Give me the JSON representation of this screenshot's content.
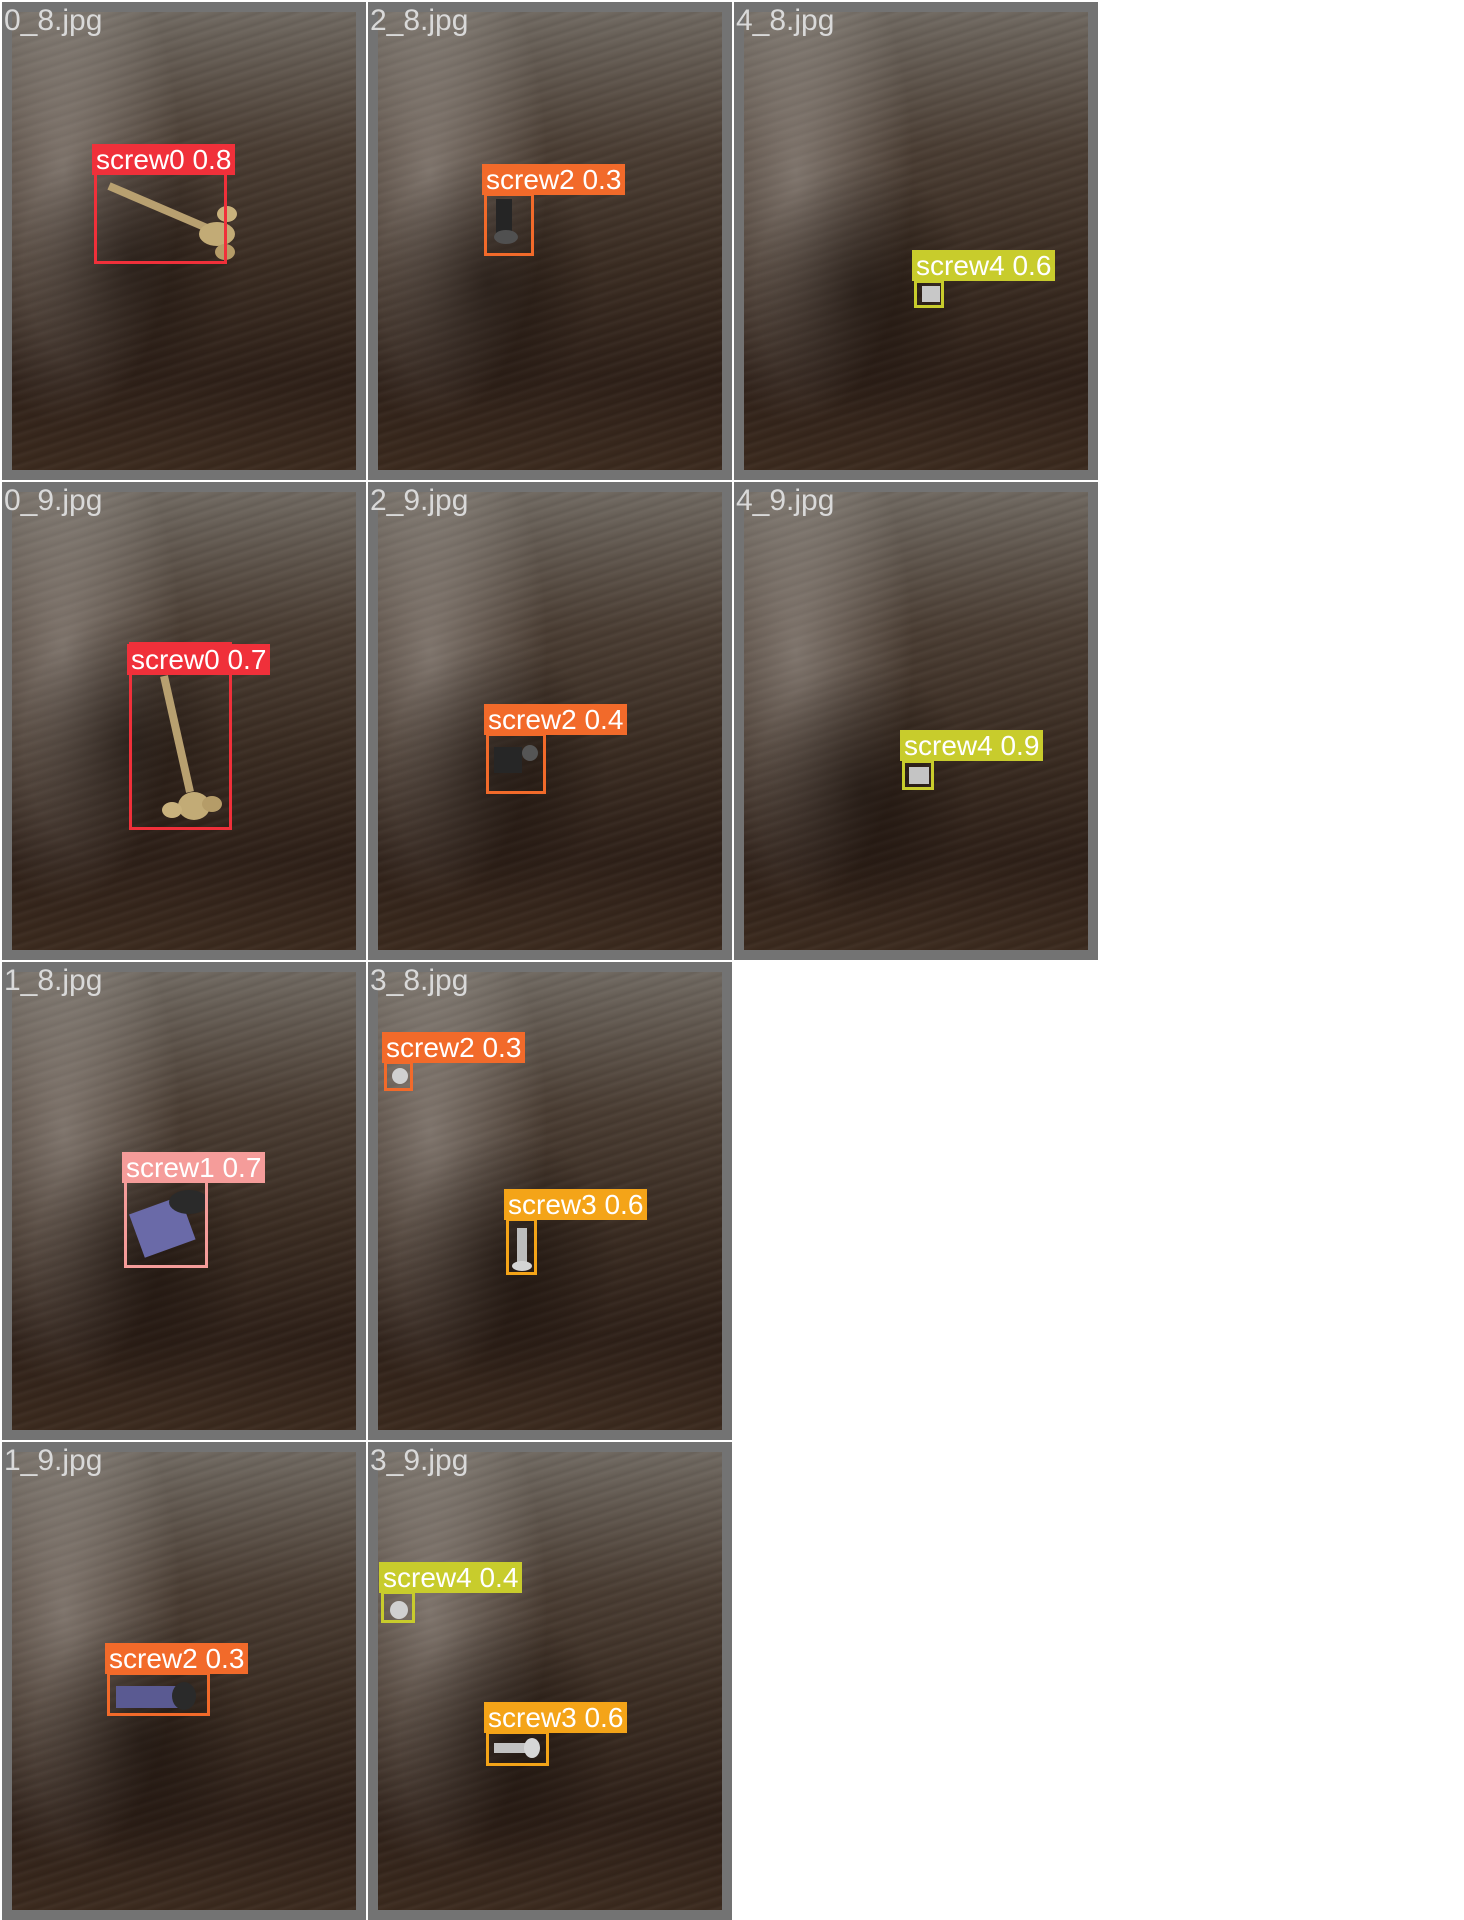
{
  "tiles": [
    {
      "filename": "0_8.jpg",
      "label": "screw0 0.8",
      "class": "screw0",
      "score": 0.8
    },
    {
      "filename": "2_8.jpg",
      "label": "screw2 0.3",
      "class": "screw2",
      "score": 0.3
    },
    {
      "filename": "4_8.jpg",
      "label": "screw4 0.6",
      "class": "screw4",
      "score": 0.6
    },
    {
      "filename": "0_9.jpg",
      "label": "screw0 0.7",
      "class": "screw0",
      "score": 0.7
    },
    {
      "filename": "2_9.jpg",
      "label": "screw2 0.4",
      "class": "screw2",
      "score": 0.4
    },
    {
      "filename": "4_9.jpg",
      "label": "screw4 0.9",
      "class": "screw4",
      "score": 0.9
    },
    {
      "filename": "1_8.jpg",
      "label": "screw1 0.7",
      "class": "screw1",
      "score": 0.7
    },
    {
      "filename": "3_8.jpg",
      "labels": [
        "screw2 0.3",
        "screw3 0.6"
      ]
    },
    {
      "filename": "1_9.jpg",
      "label": "screw2 0.3",
      "class": "screw2",
      "score": 0.3
    },
    {
      "filename": "3_9.jpg",
      "labels": [
        "screw4 0.4",
        "screw3 0.6"
      ]
    }
  ],
  "class_colors": {
    "screw0": "#f0303a",
    "screw1": "#f59c9a",
    "screw2": "#f26a2a",
    "screw3": "#f4a418",
    "screw4": "#c8cc2c"
  }
}
